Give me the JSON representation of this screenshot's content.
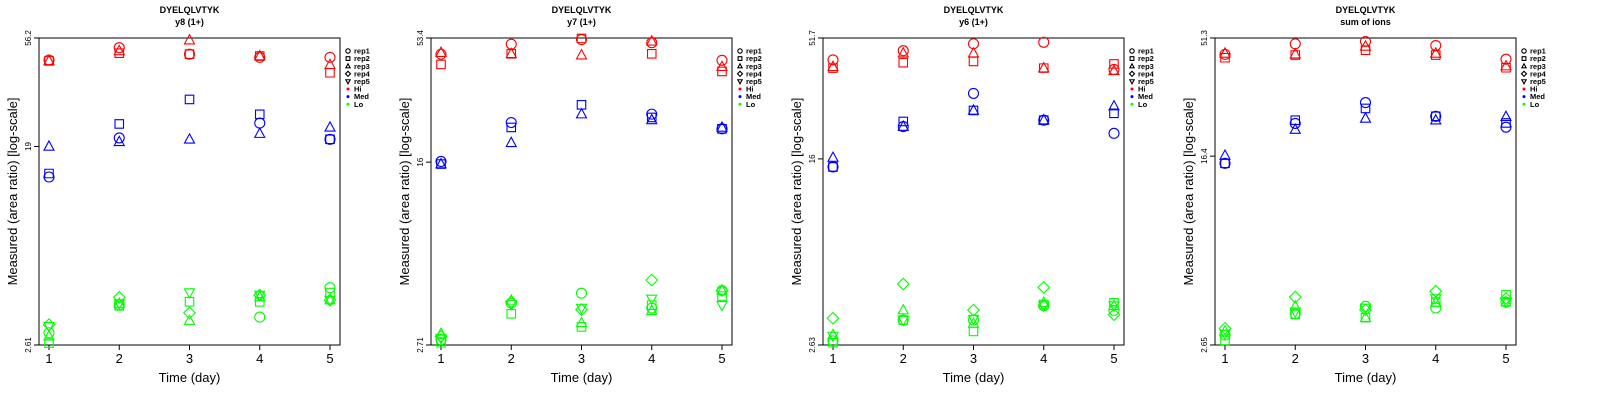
{
  "colors": {
    "Hi": "#ff0000",
    "Med": "#0000ff",
    "Lo": "#00ff00",
    "axis": "#000000"
  },
  "legend": {
    "placement": "right",
    "entries": [
      {
        "label": "rep1",
        "marker": "circle"
      },
      {
        "label": "rep2",
        "marker": "square"
      },
      {
        "label": "rep3",
        "marker": "triangle"
      },
      {
        "label": "rep4",
        "marker": "diamond"
      },
      {
        "label": "rep5",
        "marker": "triangle-down"
      },
      {
        "label": "Hi",
        "marker": "dot",
        "color": "#ff0000"
      },
      {
        "label": "Med",
        "marker": "dot",
        "color": "#0000ff"
      },
      {
        "label": "Lo",
        "marker": "dot",
        "color": "#00ff00"
      }
    ]
  },
  "chart_data": [
    {
      "type": "scatter",
      "title": "DYELQLVTYK",
      "subtitle": "y8 (1+)",
      "xlabel": "Time (day)",
      "ylabel": "Measured (area ratio) [log-scale]",
      "y_scale": "log",
      "ylim": [
        2.61,
        56.2
      ],
      "yticks": [
        "2.61",
        "19",
        "56.2"
      ],
      "xticks": [
        1,
        2,
        3,
        4,
        5
      ],
      "grid": false,
      "series": [
        {
          "name": "Hi",
          "rep1": [
            45.1,
            51.0,
            47.8,
            46.3,
            46.3
          ],
          "rep2": [
            44.7,
            48.3,
            47.8,
            46.9,
            39.7
          ],
          "rep3": [
            44.7,
            49.4,
            55.0,
            46.9,
            43.0
          ],
          "rep4": [
            null,
            null,
            null,
            null,
            null
          ],
          "rep5": [
            null,
            null,
            null,
            null,
            null
          ]
        },
        {
          "name": "Med",
          "rep1": [
            14.0,
            20.7,
            null,
            24.0,
            20.4
          ],
          "rep2": [
            14.5,
            23.8,
            30.4,
            26.2,
            20.4
          ],
          "rep3": [
            19.0,
            19.9,
            20.4,
            21.6,
            23.0
          ],
          "rep4": [
            null,
            null,
            null,
            null,
            null
          ],
          "rep5": [
            null,
            null,
            null,
            null,
            null
          ]
        },
        {
          "name": "Lo",
          "rep1": [
            2.95,
            3.9,
            null,
            3.45,
            4.63
          ],
          "rep2": [
            2.66,
            3.86,
            4.02,
            4.02,
            4.41
          ],
          "rep3": [
            2.85,
            3.95,
            3.33,
            4.22,
            4.09
          ],
          "rep4": [
            3.2,
            4.2,
            3.6,
            4.3,
            4.09
          ],
          "rep5": [
            3.15,
            3.95,
            4.41,
            4.3,
            4.09
          ]
        }
      ]
    },
    {
      "type": "scatter",
      "title": "DYELQLVTYK",
      "subtitle": "y7 (1+)",
      "xlabel": "Time (day)",
      "ylabel": "Measured (area ratio) [log-scale]",
      "y_scale": "log",
      "ylim": [
        2.71,
        53.4
      ],
      "yticks": [
        "2.71",
        "16",
        "53.4"
      ],
      "xticks": [
        1,
        2,
        3,
        4,
        5
      ],
      "grid": false,
      "series": [
        {
          "name": "Hi",
          "rep1": [
            45.6,
            50.3,
            52.6,
            51.0,
            43.0
          ],
          "rep2": [
            41.3,
            45.8,
            53.2,
            45.8,
            38.6
          ],
          "rep3": [
            46.3,
            45.8,
            45.2,
            51.7,
            40.4
          ],
          "rep4": [
            null,
            null,
            null,
            null,
            null
          ],
          "rep5": [
            null,
            null,
            null,
            null,
            null
          ]
        },
        {
          "name": "Med",
          "rep1": [
            16.1,
            23.5,
            null,
            25.5,
            22.1
          ],
          "rep2": [
            15.7,
            22.4,
            27.9,
            24.7,
            22.1
          ],
          "rep3": [
            15.7,
            19.3,
            25.5,
            24.1,
            22.4
          ],
          "rep4": [
            null,
            null,
            null,
            null,
            null
          ],
          "rep5": [
            null,
            null,
            null,
            null,
            null
          ]
        },
        {
          "name": "Lo",
          "rep1": [
            2.85,
            4.07,
            4.48,
            3.88,
            4.6
          ],
          "rep2": [
            2.77,
            3.67,
            3.23,
            3.99,
            4.36
          ],
          "rep3": [
            3.03,
            4.18,
            3.36,
            3.78,
            4.6
          ],
          "rep4": [
            2.95,
            4.12,
            3.82,
            5.09,
            4.6
          ],
          "rep5": [
            2.9,
            4.02,
            3.88,
            4.24,
            3.99
          ]
        }
      ]
    },
    {
      "type": "scatter",
      "title": "DYELQLVTYK",
      "subtitle": "y6 (1+)",
      "xlabel": "Time (day)",
      "ylabel": "Measured (area ratio) [log-scale]",
      "y_scale": "log",
      "ylim": [
        2.63,
        51.7
      ],
      "yticks": [
        "2.63",
        "16",
        "51.7"
      ],
      "xticks": [
        1,
        2,
        3,
        4,
        5
      ],
      "grid": false,
      "series": [
        {
          "name": "Hi",
          "rep1": [
            41.8,
            45.7,
            48.9,
            49.6,
            38.1
          ],
          "rep2": [
            38.6,
            40.7,
            41.2,
            38.6,
            40.2
          ],
          "rep3": [
            39.1,
            44.6,
            44.6,
            38.6,
            37.6
          ],
          "rep4": [
            null,
            null,
            null,
            null,
            null
          ],
          "rep5": [
            null,
            null,
            null,
            null,
            null
          ]
        },
        {
          "name": "Med",
          "rep1": [
            14.8,
            21.9,
            30.2,
            23.3,
            20.5
          ],
          "rep2": [
            14.8,
            23.0,
            25.6,
            23.3,
            24.9
          ],
          "rep3": [
            16.2,
            21.9,
            25.6,
            23.3,
            26.7
          ],
          "rep4": [
            null,
            null,
            null,
            null,
            null
          ],
          "rep5": [
            null,
            null,
            null,
            null,
            null
          ]
        },
        {
          "name": "Lo",
          "rep1": [
            2.74,
            3.35,
            3.35,
            3.85,
            3.68
          ],
          "rep2": [
            2.69,
            3.35,
            3.0,
            3.9,
            3.96
          ],
          "rep3": [
            2.9,
            3.69,
            3.24,
            3.96,
            3.85
          ],
          "rep4": [
            3.41,
            4.75,
            3.69,
            4.6,
            3.53
          ],
          "rep5": [
            2.87,
            3.35,
            3.38,
            3.85,
            3.85
          ]
        }
      ]
    },
    {
      "type": "scatter",
      "title": "DYELQLVTYK",
      "subtitle": "sum of ions",
      "xlabel": "Time (day)",
      "ylabel": "Measured (area ratio) [log-scale]",
      "y_scale": "log",
      "ylim": [
        2.65,
        51.3
      ],
      "yticks": [
        "2.65",
        "16.4",
        "51.3"
      ],
      "xticks": [
        1,
        2,
        3,
        4,
        5
      ],
      "grid": false,
      "series": [
        {
          "name": "Hi",
          "rep1": [
            43.8,
            48.5,
            49.6,
            47.7,
            41.8
          ],
          "rep2": [
            42.4,
            43.5,
            45.6,
            43.5,
            38.5
          ],
          "rep3": [
            44.2,
            43.9,
            47.3,
            44.2,
            39.1
          ],
          "rep4": [
            null,
            null,
            null,
            null,
            null
          ],
          "rep5": [
            null,
            null,
            null,
            null,
            null
          ]
        },
        {
          "name": "Med",
          "rep1": [
            15.3,
            22.5,
            27.5,
            24.1,
            21.7
          ],
          "rep2": [
            15.3,
            23.2,
            26.0,
            24.1,
            22.6
          ],
          "rep3": [
            16.5,
            21.2,
            23.6,
            23.2,
            24.0
          ],
          "rep4": [
            null,
            null,
            null,
            null,
            null
          ],
          "rep5": [
            null,
            null,
            null,
            null,
            null
          ]
        },
        {
          "name": "Lo",
          "rep1": [
            2.92,
            3.59,
            3.85,
            3.79,
            4.01
          ],
          "rep2": [
            2.77,
            3.56,
            3.45,
            4.01,
            4.3
          ],
          "rep3": [
            3.03,
            3.85,
            3.45,
            4.0,
            4.01
          ],
          "rep4": [
            3.11,
            4.21,
            3.72,
            4.45,
            4.15
          ],
          "rep5": [
            2.95,
            3.65,
            3.79,
            4.15,
            4.01
          ]
        }
      ]
    }
  ]
}
